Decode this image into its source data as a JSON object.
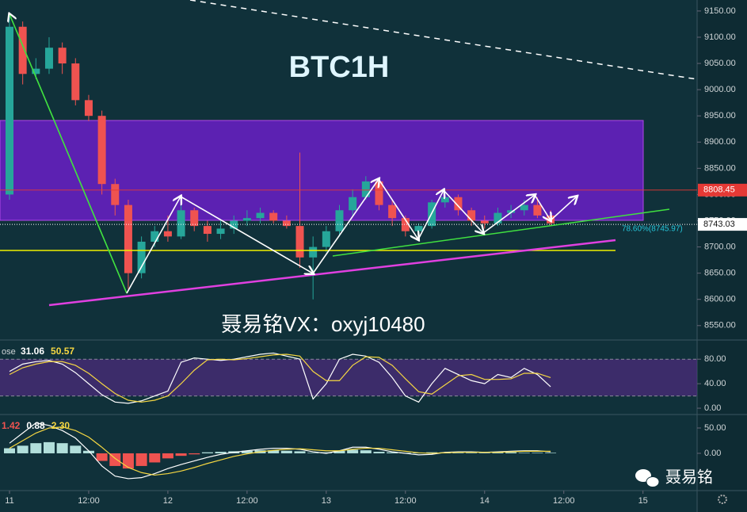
{
  "chart_data": [
    {
      "type": "candlestick",
      "title": "BTC1H",
      "annotations": [
        "78.60%(8745.97)",
        "聂易铭VX：oxyj10480"
      ],
      "x": [
        0,
        2,
        4,
        6,
        8,
        10,
        12,
        14,
        16,
        18,
        20,
        22,
        24,
        26,
        28,
        30,
        32,
        34,
        36,
        38,
        40,
        42,
        44,
        46,
        48,
        50,
        52,
        54,
        56,
        58,
        60,
        62,
        64,
        66,
        68,
        70,
        72,
        74,
        76,
        78,
        80,
        82
      ],
      "open": [
        8800,
        9120,
        9030,
        9040,
        9080,
        9050,
        8980,
        8950,
        8820,
        8780,
        8650,
        8710,
        8730,
        8720,
        8770,
        8740,
        8725,
        8735,
        8750,
        8755,
        8765,
        8750,
        8740,
        8680,
        8700,
        8730,
        8770,
        8795,
        8825,
        8780,
        8755,
        8730,
        8740,
        8785,
        8795,
        8770,
        8750,
        8745,
        8765,
        8770,
        8780,
        8760
      ],
      "high": [
        9140,
        9130,
        9060,
        9100,
        9090,
        9060,
        8990,
        8960,
        8830,
        8790,
        8720,
        8740,
        8760,
        8780,
        8775,
        8750,
        8750,
        8760,
        8770,
        8775,
        8770,
        8760,
        8880,
        8720,
        8740,
        8780,
        8810,
        8835,
        8830,
        8790,
        8760,
        8745,
        8790,
        8810,
        8800,
        8775,
        8760,
        8775,
        8780,
        8790,
        8795,
        8770
      ],
      "low": [
        8790,
        9010,
        9020,
        9030,
        9030,
        8970,
        8940,
        8800,
        8760,
        8620,
        8640,
        8700,
        8710,
        8715,
        8730,
        8710,
        8715,
        8725,
        8740,
        8745,
        8745,
        8735,
        8660,
        8600,
        8690,
        8720,
        8760,
        8790,
        8770,
        8740,
        8720,
        8715,
        8735,
        8775,
        8760,
        8740,
        8735,
        8740,
        8755,
        8760,
        8755,
        8740
      ],
      "close": [
        9120,
        9030,
        9040,
        9080,
        9050,
        8980,
        8950,
        8820,
        8780,
        8650,
        8710,
        8730,
        8720,
        8770,
        8740,
        8725,
        8735,
        8750,
        8755,
        8765,
        8750,
        8740,
        8680,
        8700,
        8730,
        8770,
        8795,
        8825,
        8780,
        8755,
        8730,
        8740,
        8785,
        8795,
        8770,
        8750,
        8745,
        8765,
        8770,
        8780,
        8760,
        8745
      ],
      "up_color": "#26a69a",
      "down_color": "#ef5350",
      "xlim": [
        -1.44,
        104.2
      ],
      "xticks": [
        {
          "value": 0,
          "label": "11"
        },
        {
          "value": 12,
          "label": "12:00"
        },
        {
          "value": 24,
          "label": "12"
        },
        {
          "value": 36,
          "label": "12:00"
        },
        {
          "value": 48,
          "label": "13"
        },
        {
          "value": 60,
          "label": "12:00"
        },
        {
          "value": 72,
          "label": "14"
        },
        {
          "value": 84,
          "label": "12:00"
        },
        {
          "value": 96,
          "label": "15"
        }
      ],
      "ylim": [
        8524,
        9171
      ],
      "yticks": [
        {
          "value": 8550,
          "label": "8550.00"
        },
        {
          "value": 8600,
          "label": "8600.00"
        },
        {
          "value": 8650,
          "label": "8650.00"
        },
        {
          "value": 8700,
          "label": "8700.00"
        },
        {
          "value": 8750,
          "label": "8750.00"
        },
        {
          "value": 8800,
          "label": "8800.00"
        },
        {
          "value": 8850,
          "label": "8850.00"
        },
        {
          "value": 8900,
          "label": "8900.00"
        },
        {
          "value": 8950,
          "label": "8950.00"
        },
        {
          "value": 9000,
          "label": "9000.00"
        },
        {
          "value": 9050,
          "label": "9050.00"
        },
        {
          "value": 9100,
          "label": "9100.00"
        },
        {
          "value": 9150,
          "label": "9150.00"
        }
      ],
      "price_labels": [
        {
          "value": 8808.45,
          "color": "#e53935"
        },
        {
          "value": 8743.03,
          "color": "#ffffff"
        }
      ]
    },
    {
      "type": "line",
      "indicator": "ose",
      "readouts": [
        31.06,
        50.57
      ],
      "band": [
        20,
        80
      ],
      "series": [
        {
          "color": "#ffffff",
          "values": [
            60,
            72,
            76,
            78,
            72,
            58,
            40,
            22,
            10,
            8,
            12,
            20,
            28,
            75,
            82,
            80,
            78,
            80,
            84,
            88,
            90,
            85,
            80,
            15,
            40,
            80,
            88,
            85,
            75,
            50,
            20,
            10,
            40,
            65,
            55,
            45,
            40,
            55,
            50,
            65,
            55,
            35
          ]
        },
        {
          "color": "#f5d742",
          "values": [
            55,
            66,
            72,
            76,
            76,
            70,
            57,
            40,
            24,
            13,
            10,
            13,
            20,
            40,
            62,
            79,
            80,
            79,
            81,
            84,
            87,
            88,
            85,
            60,
            45,
            45,
            70,
            84,
            83,
            70,
            48,
            27,
            23,
            38,
            53,
            55,
            47,
            47,
            48,
            57,
            57,
            50
          ]
        }
      ],
      "ylim": [
        -9,
        110
      ],
      "yticks": [
        {
          "value": 80,
          "label": "80.00"
        },
        {
          "value": 40,
          "label": "40.00"
        },
        {
          "value": 0,
          "label": "0.00"
        }
      ]
    },
    {
      "type": "macd",
      "readouts": [
        1.42,
        0.88,
        {
          "value": 2.3,
          "label": "2.30"
        }
      ],
      "hist_colors": [
        "#b2dfdb",
        "#ef5350"
      ],
      "histogram": [
        10,
        15,
        20,
        22,
        20,
        15,
        5,
        -15,
        -25,
        -30,
        -25,
        -18,
        -10,
        -5,
        -2,
        2,
        3,
        4,
        5,
        6,
        6,
        5,
        4,
        1,
        2,
        5,
        7,
        6,
        3,
        2,
        1,
        1,
        2,
        2,
        1,
        1,
        1,
        2,
        2,
        1,
        1,
        1
      ],
      "series": [
        {
          "color": "#ffffff",
          "values": [
            20,
            40,
            60,
            55,
            45,
            30,
            5,
            -25,
            -45,
            -50,
            -48,
            -40,
            -30,
            -22,
            -15,
            -8,
            -2,
            2,
            5,
            8,
            10,
            10,
            8,
            3,
            0,
            5,
            12,
            12,
            8,
            3,
            0,
            -3,
            -2,
            2,
            3,
            3,
            2,
            3,
            4,
            5,
            5,
            3
          ]
        },
        {
          "color": "#f5d742",
          "values": [
            10,
            25,
            40,
            50,
            52,
            45,
            32,
            12,
            -10,
            -28,
            -38,
            -43,
            -40,
            -35,
            -28,
            -20,
            -13,
            -6,
            -1,
            3,
            6,
            8,
            9,
            7,
            5,
            5,
            8,
            10,
            10,
            7,
            4,
            1,
            0,
            1,
            2,
            2,
            2,
            2,
            3,
            4,
            4,
            4
          ]
        }
      ],
      "ylim": [
        -72,
        75
      ],
      "yticks": [
        {
          "value": 50,
          "label": "50.00"
        },
        {
          "value": 0,
          "label": "0.00"
        }
      ]
    }
  ],
  "watermark": "聂易铭"
}
